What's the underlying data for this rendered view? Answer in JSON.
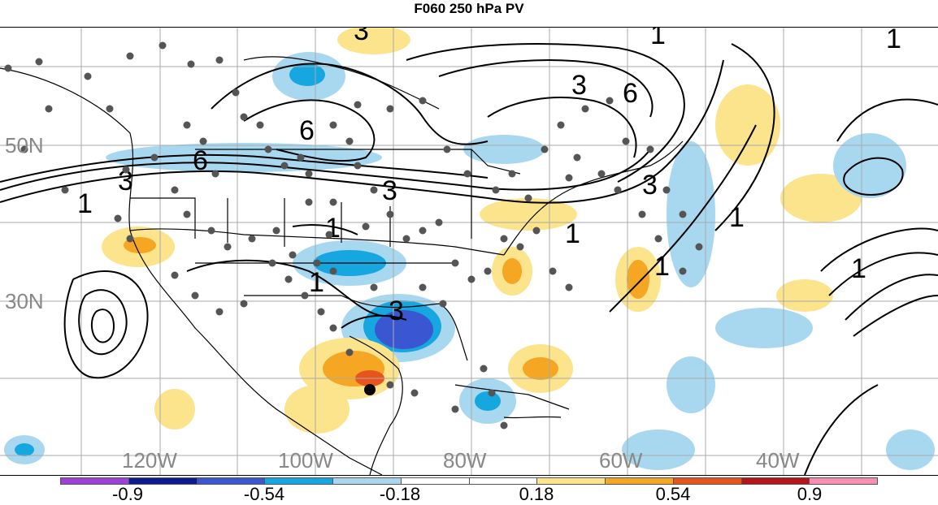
{
  "title": "F060 250 hPa PV",
  "axes": {
    "lat_labels": [
      "50N",
      "30N"
    ],
    "lon_labels": [
      "120W",
      "100W",
      "80W",
      "60W",
      "40W"
    ]
  },
  "colorbar": {
    "colors": [
      "#9e3fd6",
      "#0d1b8e",
      "#3a56d0",
      "#16a6e0",
      "#a8d8f0",
      "#ffffff",
      "#ffffff",
      "#fbe48c",
      "#f5a623",
      "#e8541e",
      "#b7141a",
      "#f78fb3"
    ],
    "labels": [
      "-0.9",
      "-0.54",
      "-0.18",
      "0.18",
      "0.54",
      "0.9"
    ]
  },
  "contour_labels": [
    "1",
    "3",
    "6",
    "1",
    "3",
    "6",
    "1",
    "3",
    "6",
    "1",
    "3",
    "1",
    "1",
    "1",
    "1",
    "1",
    "3",
    "3"
  ],
  "marker": {
    "type": "black-dot",
    "description_color": "#000000"
  },
  "map_features": [
    "coastlines",
    "country-borders",
    "us-state-borders",
    "lat-lon-grid",
    "station-dots"
  ]
}
